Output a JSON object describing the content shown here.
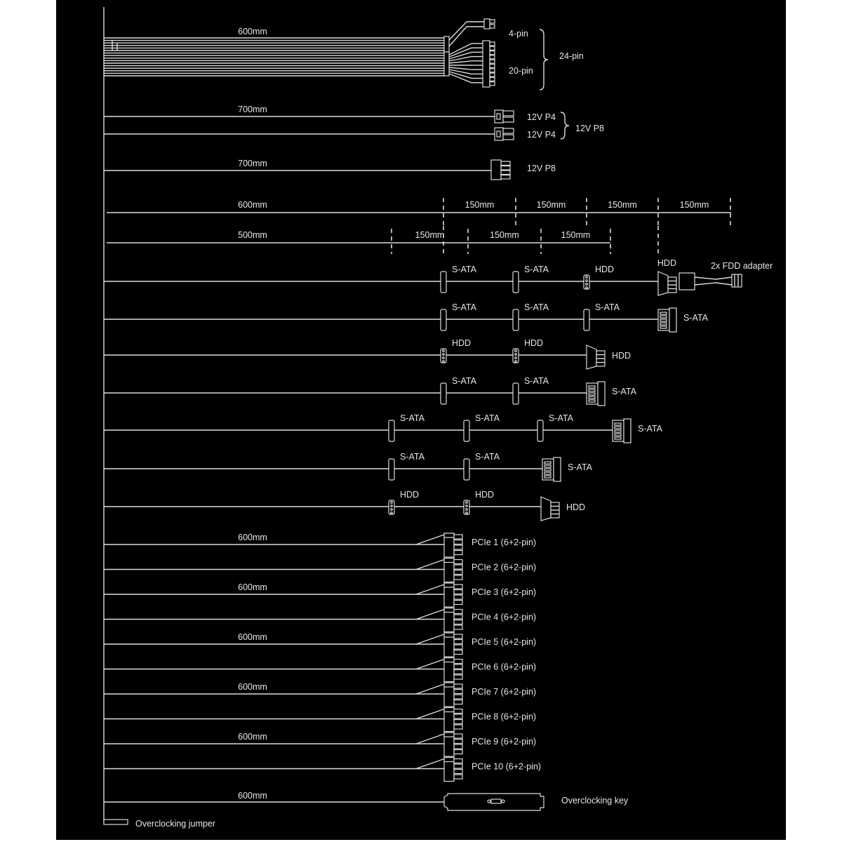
{
  "colors": {
    "background": "#000000",
    "line": "#dcdcdc",
    "text": "#e6e6e6"
  },
  "atx": {
    "length": "600mm",
    "four_pin": "4-pin",
    "twenty_pin": "20-pin",
    "total": "24-pin"
  },
  "eps_pair": {
    "length": "700mm",
    "top": "12V P4",
    "bottom": "12V P4",
    "combined": "12V P8"
  },
  "eps_single": {
    "length": "700mm",
    "label": "12V P8"
  },
  "dimensions": {
    "row1": {
      "length": "600mm",
      "segments": [
        "150mm",
        "150mm",
        "150mm",
        "150mm"
      ]
    },
    "row2": {
      "length": "500mm",
      "segments": [
        "150mm",
        "150mm",
        "150mm"
      ]
    }
  },
  "peripheral_rows": [
    {
      "connectors": [
        "S-ATA",
        "S-ATA",
        "HDD",
        "HDD"
      ],
      "adapter": "2x FDD adapter"
    },
    {
      "connectors": [
        "S-ATA",
        "S-ATA",
        "S-ATA",
        "S-ATA"
      ]
    },
    {
      "connectors": [
        "HDD",
        "HDD",
        "HDD"
      ]
    },
    {
      "connectors": [
        "S-ATA",
        "S-ATA",
        "S-ATA"
      ]
    },
    {
      "connectors": [
        "S-ATA",
        "S-ATA",
        "S-ATA",
        "S-ATA"
      ]
    },
    {
      "connectors": [
        "S-ATA",
        "S-ATA",
        "S-ATA"
      ]
    },
    {
      "connectors": [
        "HDD",
        "HDD",
        "HDD"
      ]
    }
  ],
  "pcie": {
    "length": "600mm",
    "cables": [
      "PCIe 1 (6+2-pin)",
      "PCIe 2 (6+2-pin)",
      "PCIe 3 (6+2-pin)",
      "PCIe 4 (6+2-pin)",
      "PCIe 5 (6+2-pin)",
      "PCIe 6 (6+2-pin)",
      "PCIe 7 (6+2-pin)",
      "PCIe 8 (6+2-pin)",
      "PCIe 9 (6+2-pin)",
      "PCIe 10 (6+2-pin)"
    ]
  },
  "overclocking": {
    "length": "600mm",
    "key": "Overclocking key",
    "jumper": "Overclocking jumper"
  }
}
